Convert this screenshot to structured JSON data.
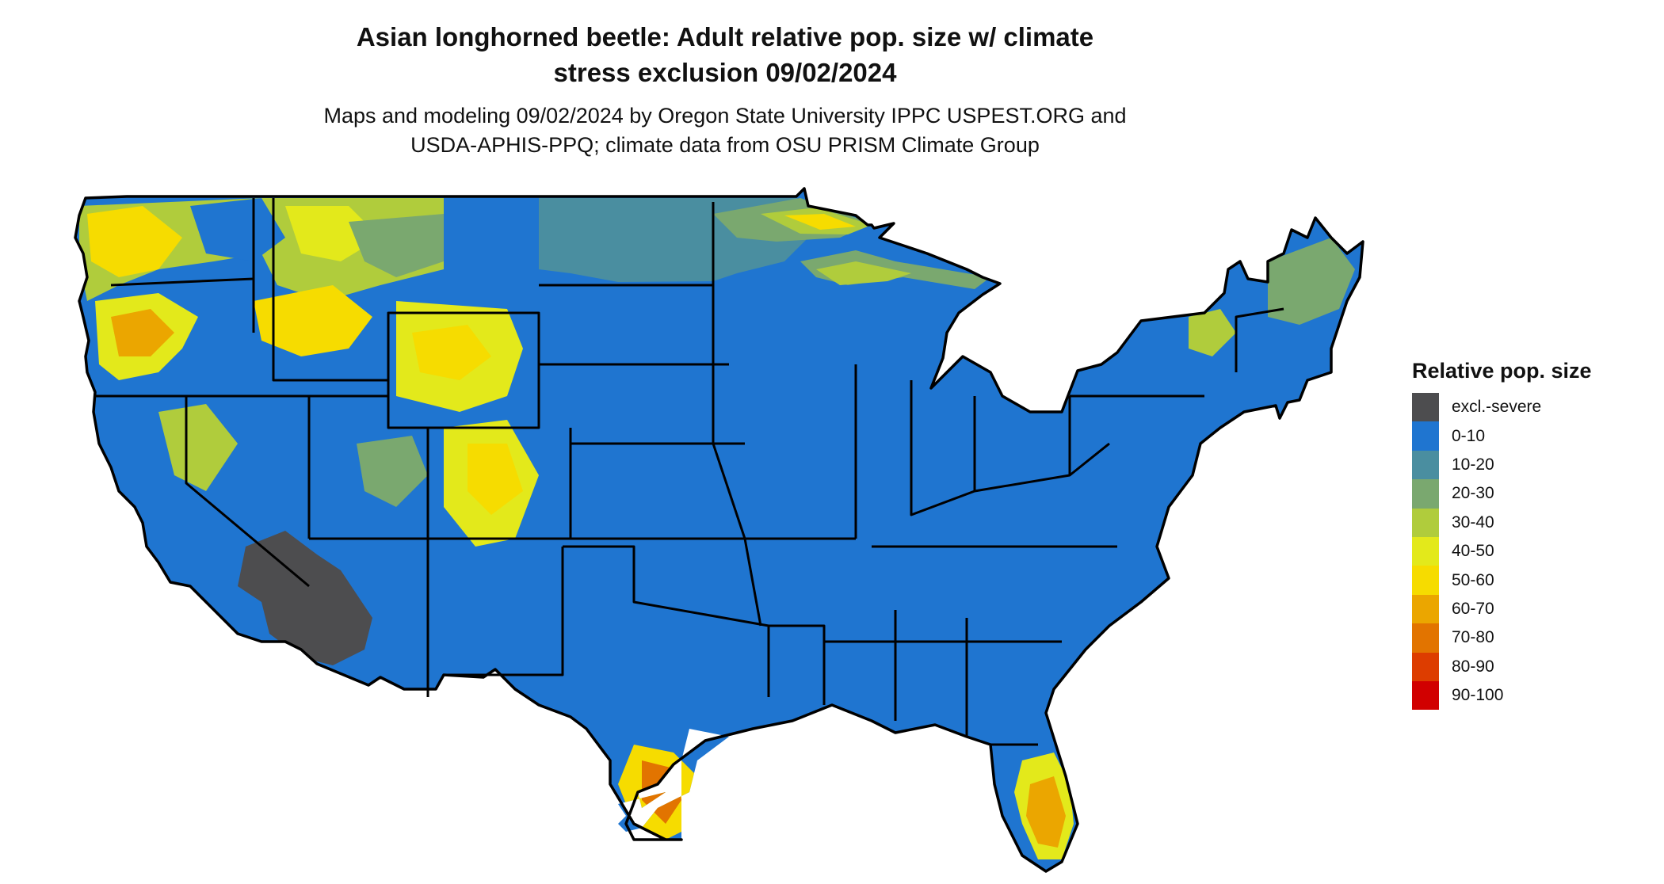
{
  "title_line1": "Asian longhorned beetle: Adult relative pop. size w/ climate",
  "title_line2": "stress exclusion 09/02/2024",
  "subtitle_line1": "Maps and modeling 09/02/2024 by Oregon State University IPPC USPEST.ORG and",
  "subtitle_line2": "USDA-APHIS-PPQ; climate data from OSU PRISM Climate Group",
  "legend": {
    "title": "Relative pop. size",
    "items": [
      {
        "label": "excl.-severe",
        "color": "#4d4d4f"
      },
      {
        "label": "0-10",
        "color": "#1f75d0"
      },
      {
        "label": "10-20",
        "color": "#4a8ea0"
      },
      {
        "label": "20-30",
        "color": "#7aa86f"
      },
      {
        "label": "30-40",
        "color": "#b0cc3c"
      },
      {
        "label": "40-50",
        "color": "#e3e91b"
      },
      {
        "label": "50-60",
        "color": "#f6dc00"
      },
      {
        "label": "60-70",
        "color": "#eba600"
      },
      {
        "label": "70-80",
        "color": "#e27400"
      },
      {
        "label": "80-90",
        "color": "#dd3d00"
      },
      {
        "label": "90-100",
        "color": "#d10000"
      }
    ]
  },
  "map": {
    "base_color": "#1f75d0",
    "border_color": "#000000"
  }
}
